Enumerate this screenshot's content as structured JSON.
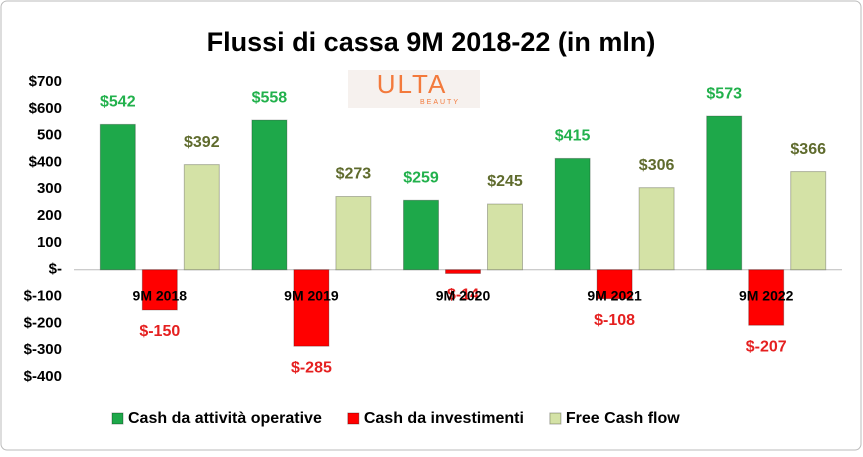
{
  "chart_data": {
    "type": "bar",
    "title": "Flussi di cassa 9M 2018-22 (in mln)",
    "logo": {
      "name": "ULTA",
      "sub": "BEAUTY"
    },
    "categories": [
      "9M 2018",
      "9M 2019",
      "9M 2020",
      "9M 2021",
      "9M 2022"
    ],
    "series": [
      {
        "name": "Cash da attività operative",
        "color": "#1ea84a",
        "label_color": "#22b14c",
        "values": [
          542,
          558,
          259,
          415,
          573
        ],
        "value_labels": [
          "$542",
          "$558",
          "$259",
          "$415",
          "$573"
        ]
      },
      {
        "name": "Cash da investimenti",
        "color": "#ff0000",
        "label_color": "#e52020",
        "values": [
          -150,
          -285,
          -14,
          -108,
          -207
        ],
        "value_labels": [
          "$-150",
          "$-285",
          "$-14",
          "$-108",
          "$-207"
        ]
      },
      {
        "name": "Free Cash flow",
        "color": "#d4e2a6",
        "label_color": "#5f6b2d",
        "values": [
          392,
          273,
          245,
          306,
          366
        ],
        "value_labels": [
          "$392",
          "$273",
          "$245",
          "$306",
          "$366"
        ]
      }
    ],
    "ylim": [
      -400,
      700
    ],
    "yticks": [
      {
        "value": 700,
        "label": "$700"
      },
      {
        "value": 600,
        "label": "$600"
      },
      500,
      {
        "value": 400,
        "label": "$400"
      },
      300,
      200,
      100,
      {
        "value": 0,
        "label": "$-"
      },
      {
        "value": -100,
        "label": "$-100"
      },
      {
        "value": -200,
        "label": "$-200"
      },
      {
        "value": -300,
        "label": "$-300"
      },
      {
        "value": -400,
        "label": "$-400"
      }
    ],
    "grid": false,
    "legend": "bottom"
  }
}
